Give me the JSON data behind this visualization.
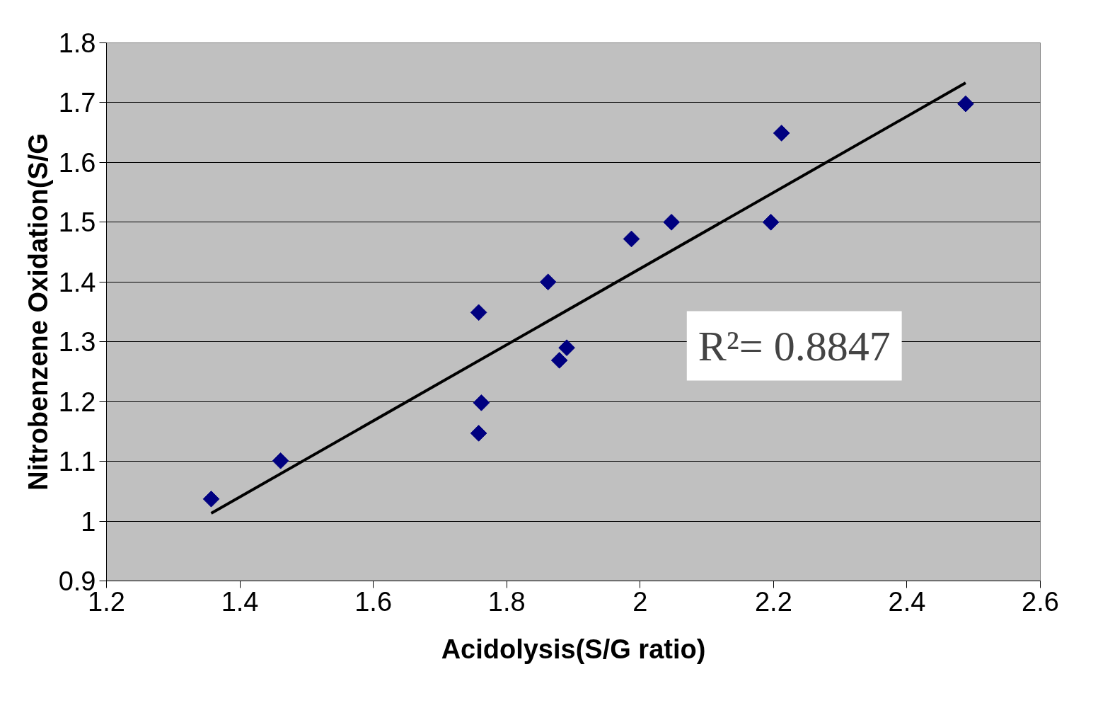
{
  "chart_data": {
    "type": "scatter",
    "xlabel": "Acidolysis(S/G ratio)",
    "ylabel": "Nitrobenzene Oxidation(S/G",
    "series": [
      {
        "color": "#000080",
        "marker": "diamond",
        "x": [
          1.357,
          1.461,
          1.758,
          1.762,
          1.758,
          1.862,
          1.879,
          1.89,
          1.987,
          2.047,
          2.196,
          2.212,
          2.488
        ],
        "values": [
          1.037,
          1.101,
          1.349,
          1.198,
          1.147,
          1.4,
          1.269,
          1.29,
          1.472,
          1.5,
          1.5,
          1.649,
          1.698
        ]
      },
      {
        "type": "line",
        "color": "#000000",
        "x": [
          1.357,
          2.488
        ],
        "values": [
          1.013,
          1.733
        ]
      }
    ],
    "annotations": [
      "R²= 0.8847"
    ],
    "xlim": [
      1.2,
      2.6
    ],
    "xticks": [
      1.2,
      1.4,
      1.6,
      1.8,
      2,
      2.2,
      2.4,
      2.6
    ],
    "ylim": [
      0.9,
      1.8
    ],
    "yticks": [
      0.9,
      1,
      1.1,
      1.2,
      1.3,
      1.4,
      1.5,
      1.6,
      1.7,
      1.8
    ],
    "grid": "y"
  }
}
